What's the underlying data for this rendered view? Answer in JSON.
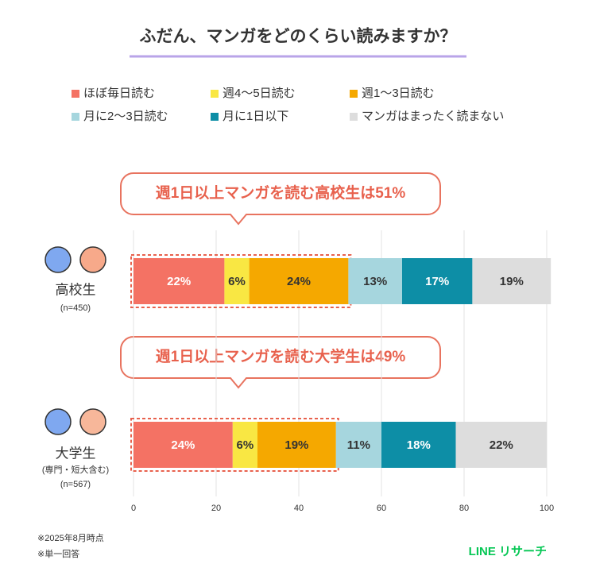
{
  "chart_data": {
    "type": "stacked_barh",
    "title": "ふだん、マンガをどのくらい読みますか？",
    "categories": [
      "高校生",
      "大学生"
    ],
    "category_notes": [
      [
        "(n=450)"
      ],
      [
        "(専門・短大含む)",
        "(n=567)"
      ]
    ],
    "callouts": [
      "週1日以上マンガを読む高校生は51%",
      "週1日以上マンガを読む大学生は49%"
    ],
    "series": [
      {
        "name": "ほぼ毎日読む",
        "color": "#f47264",
        "values": [
          22,
          24
        ],
        "value_labels": [
          "22%",
          "24%"
        ]
      },
      {
        "name": "週4～5日読む",
        "color": "#f9e743",
        "values": [
          6,
          6
        ],
        "value_labels": [
          "6%",
          "6%"
        ]
      },
      {
        "name": "週1～3日読む",
        "color": "#f5a800",
        "values": [
          24,
          19
        ],
        "value_labels": [
          "24%",
          "19%"
        ]
      },
      {
        "name": "月に2～3日読む",
        "color": "#a6d6de",
        "values": [
          13,
          11
        ],
        "value_labels": [
          "13%",
          "11%"
        ]
      },
      {
        "name": "月に1日以下",
        "color": "#0d8ea6",
        "values": [
          17,
          18
        ],
        "value_labels": [
          "17%",
          "18%"
        ]
      },
      {
        "name": "マンガはまったく読まない",
        "color": "#dddddd",
        "values": [
          19,
          22
        ],
        "value_labels": [
          "19%",
          "22%"
        ]
      }
    ],
    "xlim": [
      0,
      100
    ],
    "xticks": [
      0,
      20,
      40,
      60,
      80,
      100
    ],
    "grid": true,
    "footnotes": [
      "※2025年8月時点",
      "※単一回答"
    ],
    "brand": "LINE リサーチ"
  }
}
